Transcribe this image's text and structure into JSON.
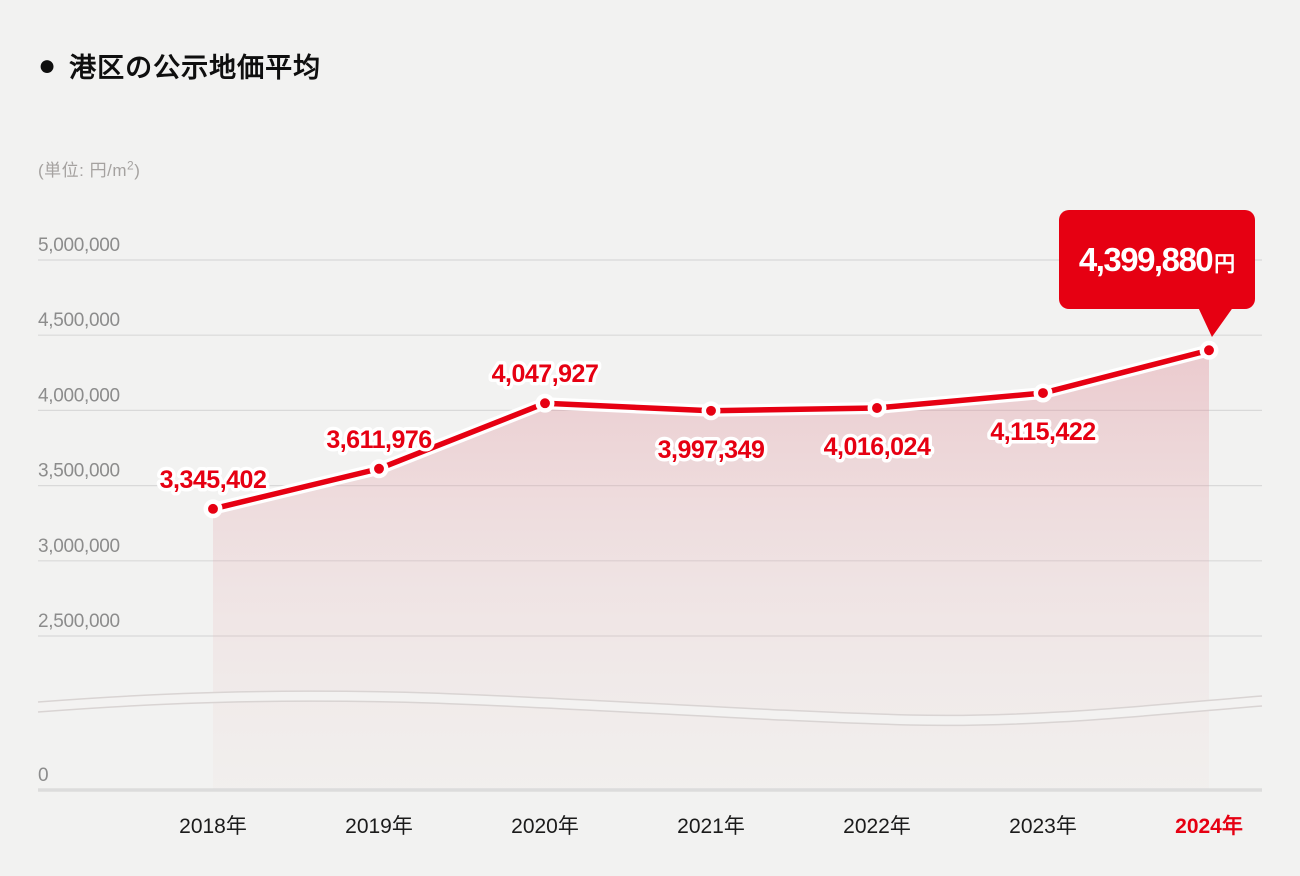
{
  "header": {
    "bullet": "●",
    "title": "港区の公示地価平均"
  },
  "unit_label": {
    "prefix": "(単位: 円/m",
    "sup": "2",
    "suffix": ")"
  },
  "tooltip": {
    "value": "4,399,880",
    "unit": "円"
  },
  "chart_data": {
    "type": "area",
    "title": "港区の公示地価平均",
    "ylabel": "(単位: 円/m2)",
    "categories": [
      "2018年",
      "2019年",
      "2020年",
      "2021年",
      "2022年",
      "2023年",
      "2024年"
    ],
    "series": [
      {
        "name": "公示地価平均",
        "values": [
          3345402,
          3611976,
          4047927,
          3997349,
          4016024,
          4115422,
          4399880
        ]
      }
    ],
    "point_labels": [
      "3,345,402",
      "3,611,976",
      "4,047,927",
      "3,997,349",
      "4,016,024",
      "4,115,422",
      "4,399,880"
    ],
    "label_positions": [
      "above",
      "above",
      "above",
      "below",
      "below",
      "below",
      "tooltip"
    ],
    "y_ticks": [
      {
        "label": "5,000,000",
        "value": 5000000
      },
      {
        "label": "4,500,000",
        "value": 4500000
      },
      {
        "label": "4,000,000",
        "value": 4000000
      },
      {
        "label": "3,500,000",
        "value": 3500000
      },
      {
        "label": "3,000,000",
        "value": 3000000
      },
      {
        "label": "2,500,000",
        "value": 2500000
      },
      {
        "label": "0",
        "value": 0
      }
    ],
    "axis_break": "wavy break between 0 and 2,500,000",
    "grid": true,
    "legend": false,
    "highlight_category": "2024年",
    "colors": {
      "background": "#f2f2f1",
      "line": "#e60012",
      "point_fill": "#e60012",
      "point_ring": "#ffffff",
      "label_text": "#e60012",
      "label_halo": "#ffffff",
      "grid": "#d9d9d9",
      "axis": "#dcdcdc",
      "tick_text": "#8c8c8c",
      "x_label": "#1b1b1b",
      "x_label_highlight": "#e60012",
      "break_fill": "#f3f2f1",
      "break_edge": "#d9d4d3",
      "area_stops": [
        [
          "0",
          "rgba(221,123,136,0.34)"
        ],
        [
          "0.55",
          "rgba(228,170,175,0.20)"
        ],
        [
          "1",
          "rgba(236,212,206,0.10)"
        ]
      ]
    }
  }
}
